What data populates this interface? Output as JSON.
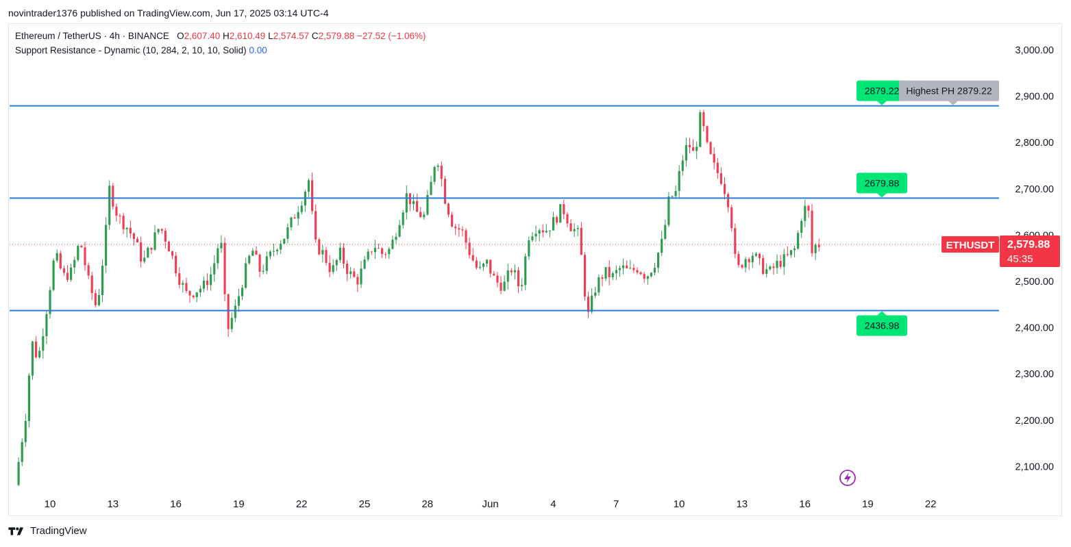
{
  "header": {
    "published_text": "novintrader1376 published on TradingView.com, Jun 17, 2025 03:14 UTC-4"
  },
  "legend": {
    "symbol": "Ethereum / TetherUS · 4h · BINANCE",
    "o_label": "O",
    "o_value": "2,607.40",
    "h_label": "H",
    "h_value": "2,610.49",
    "l_label": "L",
    "l_value": "2,574.57",
    "c_label": "C",
    "c_value": "2,579.88",
    "change": "−27.52 (−1.06%)",
    "indicator": "Support Resistance - Dynamic (10, 284, 2, 10, 10, Solid)",
    "indicator_value": "0.00"
  },
  "footer": {
    "brand": "TradingView"
  },
  "colors": {
    "up": "#26a69a",
    "up_body": "#2e9b4e",
    "down": "#ef3e54",
    "line": "#2b7bd6",
    "label_green": "#00e676",
    "label_gray": "#b2b5be",
    "price_red": "#f23645",
    "grid_text": "#131722",
    "icon_purple": "#9c27b0"
  },
  "chart_data": {
    "type": "candlestick",
    "title": "Ethereum / TetherUS · 4h · BINANCE",
    "ylim": [
      2050,
      3050
    ],
    "y_ticks": [
      {
        "value": 3000,
        "label": "3,000.00"
      },
      {
        "value": 2900,
        "label": "2,900.00"
      },
      {
        "value": 2800,
        "label": "2,800.00"
      },
      {
        "value": 2700,
        "label": "2,700.00"
      },
      {
        "value": 2600,
        "label": "2,600.00"
      },
      {
        "value": 2500,
        "label": "2,500.00"
      },
      {
        "value": 2400,
        "label": "2,400.00"
      },
      {
        "value": 2300,
        "label": "2,300.00"
      },
      {
        "value": 2200,
        "label": "2,200.00"
      },
      {
        "value": 2100,
        "label": "2,100.00"
      }
    ],
    "x_ticks": [
      {
        "day": 10,
        "label": "10"
      },
      {
        "day": 13,
        "label": "13"
      },
      {
        "day": 16,
        "label": "16"
      },
      {
        "day": 19,
        "label": "19"
      },
      {
        "day": 22,
        "label": "22"
      },
      {
        "day": 25,
        "label": "25"
      },
      {
        "day": 28,
        "label": "28"
      },
      {
        "day": 31,
        "label": "Jun"
      },
      {
        "day": 34,
        "label": "4"
      },
      {
        "day": 37,
        "label": "7"
      },
      {
        "day": 40,
        "label": "10"
      },
      {
        "day": 43,
        "label": "13"
      },
      {
        "day": 46,
        "label": "16"
      },
      {
        "day": 49,
        "label": "19"
      },
      {
        "day": 52,
        "label": "22"
      }
    ],
    "x_range_days": [
      8.0,
      55.3
    ],
    "first_candle_day": 8.5,
    "candle_interval_days": 0.1667,
    "series_points": [
      [
        8.5,
        2060
      ],
      [
        9.0,
        2210
      ],
      [
        9.3,
        2370
      ],
      [
        9.6,
        2330
      ],
      [
        10.0,
        2440
      ],
      [
        10.4,
        2560
      ],
      [
        10.8,
        2510
      ],
      [
        11.2,
        2520
      ],
      [
        11.6,
        2590
      ],
      [
        12.0,
        2500
      ],
      [
        12.4,
        2440
      ],
      [
        12.8,
        2590
      ],
      [
        13.0,
        2700
      ],
      [
        13.4,
        2640
      ],
      [
        13.8,
        2620
      ],
      [
        14.2,
        2590
      ],
      [
        14.6,
        2540
      ],
      [
        15.0,
        2580
      ],
      [
        15.4,
        2620
      ],
      [
        15.8,
        2580
      ],
      [
        16.3,
        2510
      ],
      [
        16.7,
        2470
      ],
      [
        17.1,
        2480
      ],
      [
        17.5,
        2490
      ],
      [
        17.9,
        2520
      ],
      [
        18.3,
        2600
      ],
      [
        18.6,
        2390
      ],
      [
        19.0,
        2440
      ],
      [
        19.4,
        2510
      ],
      [
        19.8,
        2570
      ],
      [
        20.2,
        2520
      ],
      [
        20.6,
        2550
      ],
      [
        21.0,
        2580
      ],
      [
        21.4,
        2600
      ],
      [
        21.8,
        2640
      ],
      [
        22.2,
        2680
      ],
      [
        22.5,
        2720
      ],
      [
        22.8,
        2580
      ],
      [
        23.2,
        2560
      ],
      [
        23.6,
        2520
      ],
      [
        24.0,
        2560
      ],
      [
        24.4,
        2520
      ],
      [
        24.8,
        2500
      ],
      [
        25.2,
        2540
      ],
      [
        25.6,
        2580
      ],
      [
        26.0,
        2560
      ],
      [
        26.4,
        2570
      ],
      [
        26.8,
        2630
      ],
      [
        27.2,
        2690
      ],
      [
        27.6,
        2650
      ],
      [
        28.0,
        2640
      ],
      [
        28.3,
        2700
      ],
      [
        28.6,
        2780
      ],
      [
        29.0,
        2680
      ],
      [
        29.4,
        2620
      ],
      [
        29.8,
        2610
      ],
      [
        30.2,
        2560
      ],
      [
        30.6,
        2520
      ],
      [
        31.0,
        2540
      ],
      [
        31.4,
        2500
      ],
      [
        31.8,
        2490
      ],
      [
        32.2,
        2530
      ],
      [
        32.6,
        2480
      ],
      [
        33.0,
        2600
      ],
      [
        33.4,
        2620
      ],
      [
        33.8,
        2610
      ],
      [
        34.2,
        2630
      ],
      [
        34.6,
        2660
      ],
      [
        35.0,
        2620
      ],
      [
        35.4,
        2600
      ],
      [
        35.8,
        2420
      ],
      [
        36.2,
        2490
      ],
      [
        36.6,
        2520
      ],
      [
        37.0,
        2510
      ],
      [
        37.4,
        2530
      ],
      [
        37.8,
        2520
      ],
      [
        38.2,
        2530
      ],
      [
        38.6,
        2510
      ],
      [
        39.0,
        2540
      ],
      [
        39.4,
        2590
      ],
      [
        39.7,
        2680
      ],
      [
        40.0,
        2690
      ],
      [
        40.3,
        2760
      ],
      [
        40.6,
        2800
      ],
      [
        40.9,
        2770
      ],
      [
        41.2,
        2860
      ],
      [
        41.5,
        2790
      ],
      [
        41.8,
        2750
      ],
      [
        42.2,
        2720
      ],
      [
        42.6,
        2660
      ],
      [
        42.9,
        2520
      ],
      [
        43.3,
        2550
      ],
      [
        43.7,
        2560
      ],
      [
        44.1,
        2530
      ],
      [
        44.5,
        2520
      ],
      [
        44.9,
        2540
      ],
      [
        45.3,
        2550
      ],
      [
        45.7,
        2570
      ],
      [
        46.0,
        2640
      ],
      [
        46.3,
        2670
      ],
      [
        46.5,
        2560
      ],
      [
        46.7,
        2580
      ]
    ],
    "horizontal_lines": [
      {
        "value": 2879.22,
        "label": "2879.22",
        "side": "above"
      },
      {
        "value": 2679.88,
        "label": "2679.88",
        "side": "above"
      },
      {
        "value": 2436.98,
        "label": "2436.98",
        "side": "below"
      }
    ],
    "annotation": "Highest PH 2879.22",
    "last_price": {
      "value": 2579.88,
      "label": "2,579.88",
      "countdown": "45:35",
      "symbol": "ETHUSDT"
    }
  }
}
